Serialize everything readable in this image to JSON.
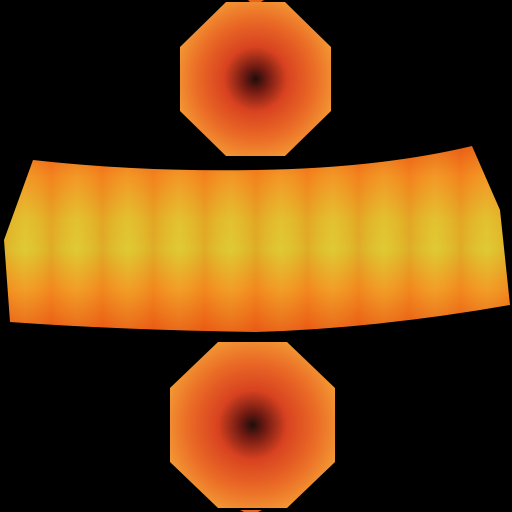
{
  "canvas": {
    "background": "#000000"
  },
  "texture": {
    "description_colors": {
      "band_core": "#ddd23a",
      "band_mid": "#f0a62a",
      "band_edge": "#e8641c",
      "cap_outer": "#f28a2c",
      "cap_mid": "#dc4420",
      "cap_center": "#201010"
    },
    "caps": [
      {
        "name": "top-cap",
        "sides": 8
      },
      {
        "name": "bottom-cap",
        "sides": 8
      }
    ],
    "band": {
      "name": "center-band",
      "stripes": 10
    }
  }
}
